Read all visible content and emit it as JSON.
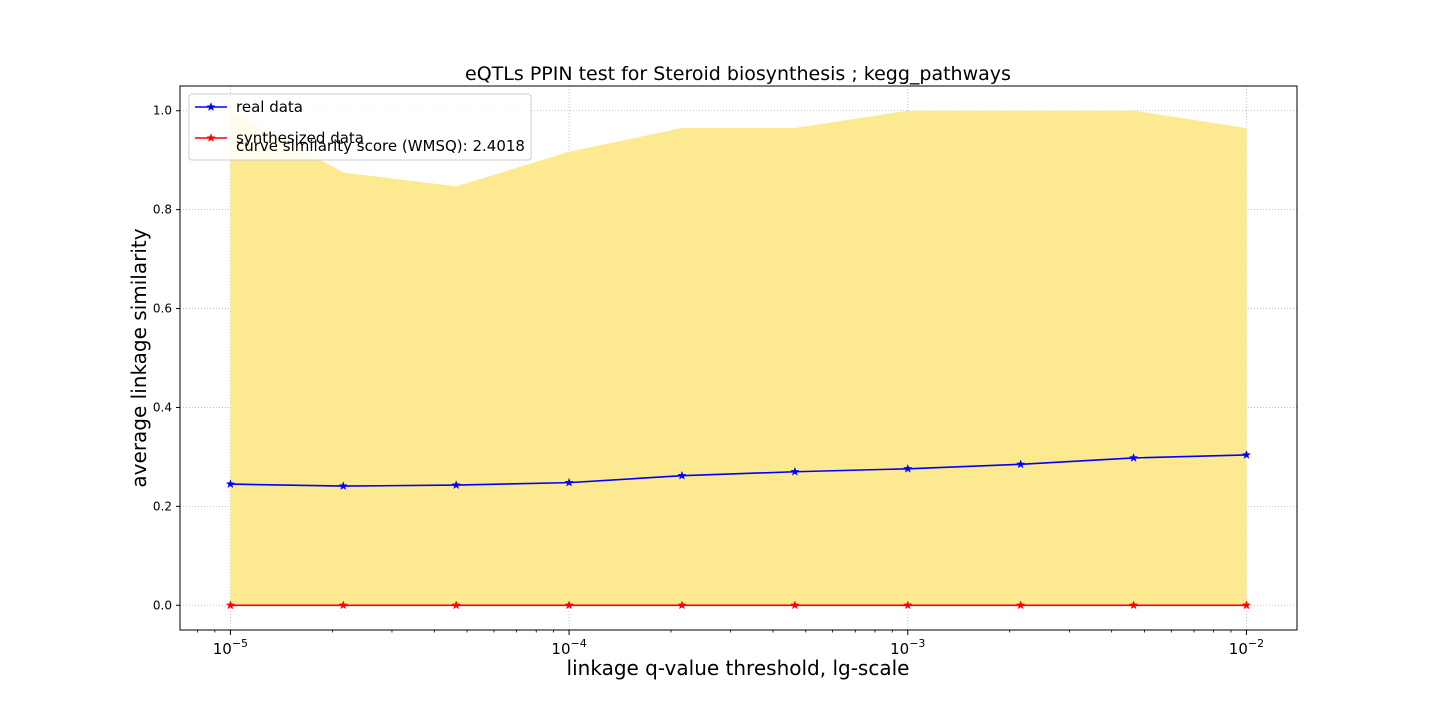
{
  "chart_data": {
    "type": "line",
    "title": "eQTLs PPIN test for Steroid biosynthesis ; kegg_pathways",
    "xlabel": "linkage q-value threshold, lg-scale",
    "ylabel": "average linkage similarity",
    "x_scale": "log",
    "x": [
      1e-05,
      2.154e-05,
      4.642e-05,
      0.0001,
      0.0002154,
      0.0004642,
      0.001,
      0.002154,
      0.004642,
      0.01
    ],
    "xlim": [
      7.1e-06,
      0.0141
    ],
    "ylim": [
      -0.05,
      1.05
    ],
    "x_ticks": [
      {
        "value": 1e-05,
        "base": "10",
        "exp": "−5"
      },
      {
        "value": 0.0001,
        "base": "10",
        "exp": "−4"
      },
      {
        "value": 0.001,
        "base": "10",
        "exp": "−3"
      },
      {
        "value": 0.01,
        "base": "10",
        "exp": "−2"
      }
    ],
    "y_ticks": [
      0.0,
      0.2,
      0.4,
      0.6,
      0.8,
      1.0
    ],
    "y_tick_labels": [
      "0.0",
      "0.2",
      "0.4",
      "0.6",
      "0.8",
      "1.0"
    ],
    "grid": true,
    "legend_position": "top-left",
    "band": {
      "color": "#fde98f",
      "lower": [
        0,
        0,
        0,
        0,
        0,
        0,
        0,
        0,
        0,
        0
      ],
      "upper": [
        1.0,
        0.875,
        0.847,
        0.917,
        0.965,
        0.965,
        1.0,
        1.0,
        1.0,
        0.965
      ]
    },
    "series": [
      {
        "name": "real data",
        "color": "#0000ff",
        "marker": "star",
        "values": [
          0.245,
          0.241,
          0.243,
          0.248,
          0.262,
          0.27,
          0.276,
          0.285,
          0.298,
          0.304
        ]
      },
      {
        "name": "synthesized data",
        "color": "#ff0000",
        "marker": "star",
        "values": [
          0,
          0,
          0,
          0,
          0,
          0,
          0,
          0,
          0,
          0
        ]
      }
    ],
    "legend_extra_line": "curve similarity score (WMSQ): 2.4018"
  }
}
